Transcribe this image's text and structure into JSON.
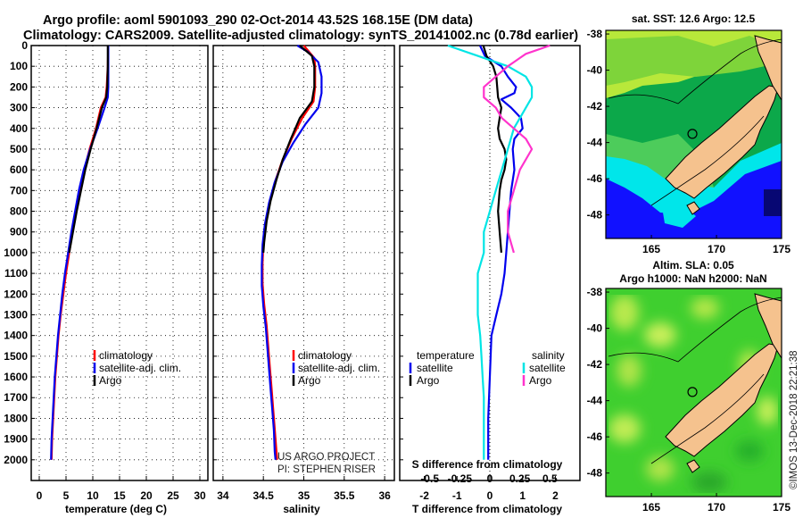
{
  "header": {
    "line1": "Argo profile: aoml 5901093_290 02-Oct-2014 43.52S 168.15E (DM data)",
    "line2": "Climatology: CARS2009. Satellite-adjusted climatology: synTS_20141002.nc (0.78d earlier)"
  },
  "colors": {
    "climatology": "#ff0000",
    "satellite": "#0000ee",
    "argo": "#000000",
    "salinity_satellite": "#00e5e5",
    "salinity_argo": "#ff33cc",
    "land": "#f5c28e"
  },
  "credits": {
    "project": "US ARGO PROJECT",
    "pi": "PI: STEPHEN RISER"
  },
  "stamp": "©IMOS 13-Dec-2018 22:21:38",
  "chart_data": [
    {
      "type": "line",
      "name": "temperature-profile",
      "xlabel": "temperature (deg C)",
      "ylabel": "",
      "xlim": [
        -1.5,
        31.5
      ],
      "xticks": [
        0,
        5,
        10,
        15,
        20,
        25,
        30
      ],
      "xticklabels": [
        "0",
        "5",
        "10",
        "15",
        "20",
        "25",
        "30"
      ],
      "ylim": [
        0,
        2100
      ],
      "yticks": [
        0,
        100,
        200,
        300,
        400,
        500,
        600,
        700,
        800,
        900,
        1000,
        1100,
        1200,
        1300,
        1400,
        1500,
        1600,
        1700,
        1800,
        1900,
        2000
      ],
      "grid": true,
      "legend": [
        "climatology",
        "satellite-adj. clim.",
        "Argo"
      ],
      "series": [
        {
          "name": "climatology",
          "color": "#ff0000",
          "points": [
            [
              12.9,
              0
            ],
            [
              12.8,
              100
            ],
            [
              12.6,
              200
            ],
            [
              12.4,
              250
            ],
            [
              11.5,
              300
            ],
            [
              10.6,
              400
            ],
            [
              9.4,
              500
            ],
            [
              8.4,
              600
            ],
            [
              7.6,
              700
            ],
            [
              6.9,
              800
            ],
            [
              6.2,
              900
            ],
            [
              5.6,
              1000
            ],
            [
              5.0,
              1100
            ],
            [
              4.5,
              1200
            ],
            [
              4.0,
              1300
            ],
            [
              3.6,
              1400
            ],
            [
              3.3,
              1500
            ],
            [
              3.0,
              1600
            ],
            [
              2.8,
              1700
            ],
            [
              2.6,
              1800
            ],
            [
              2.4,
              1900
            ],
            [
              2.3,
              2000
            ]
          ]
        },
        {
          "name": "satellite-adj. clim.",
          "color": "#0000ee",
          "points": [
            [
              12.9,
              0
            ],
            [
              12.9,
              100
            ],
            [
              12.9,
              200
            ],
            [
              12.8,
              250
            ],
            [
              12.2,
              300
            ],
            [
              10.9,
              400
            ],
            [
              9.5,
              500
            ],
            [
              8.3,
              600
            ],
            [
              7.4,
              700
            ],
            [
              6.7,
              800
            ],
            [
              6.0,
              900
            ],
            [
              5.4,
              1000
            ],
            [
              4.8,
              1100
            ],
            [
              4.3,
              1200
            ],
            [
              3.9,
              1300
            ],
            [
              3.5,
              1400
            ],
            [
              3.2,
              1500
            ],
            [
              2.9,
              1600
            ],
            [
              2.7,
              1700
            ],
            [
              2.5,
              1800
            ],
            [
              2.3,
              1900
            ],
            [
              2.2,
              2000
            ]
          ]
        },
        {
          "name": "Argo",
          "color": "#000000",
          "points": [
            [
              12.8,
              0
            ],
            [
              12.8,
              100
            ],
            [
              12.7,
              200
            ],
            [
              12.5,
              250
            ],
            [
              11.7,
              300
            ],
            [
              10.7,
              400
            ],
            [
              9.6,
              500
            ],
            [
              8.6,
              600
            ],
            [
              7.8,
              700
            ],
            [
              7.0,
              800
            ],
            [
              6.3,
              900
            ],
            [
              5.6,
              1000
            ]
          ]
        }
      ]
    },
    {
      "type": "line",
      "name": "salinity-profile",
      "xlabel": "salinity",
      "xlim": [
        33.88,
        36.12
      ],
      "xticks": [
        34,
        34.5,
        35,
        35.5,
        36
      ],
      "xticklabels": [
        "34",
        "34.5",
        "35",
        "35.5",
        "36"
      ],
      "ylim": [
        0,
        2100
      ],
      "grid": true,
      "legend": [
        "climatology",
        "satellite-adj. clim.",
        "Argo"
      ],
      "series": [
        {
          "name": "climatology",
          "color": "#ff0000",
          "points": [
            [
              35.0,
              0
            ],
            [
              35.13,
              60
            ],
            [
              35.14,
              100
            ],
            [
              35.14,
              200
            ],
            [
              35.12,
              270
            ],
            [
              34.98,
              350
            ],
            [
              34.85,
              450
            ],
            [
              34.74,
              550
            ],
            [
              34.65,
              650
            ],
            [
              34.58,
              750
            ],
            [
              34.53,
              850
            ],
            [
              34.5,
              950
            ],
            [
              34.49,
              1050
            ],
            [
              34.49,
              1150
            ],
            [
              34.51,
              1250
            ],
            [
              34.54,
              1350
            ],
            [
              34.56,
              1450
            ],
            [
              34.58,
              1550
            ],
            [
              34.6,
              1650
            ],
            [
              34.62,
              1750
            ],
            [
              34.64,
              1850
            ],
            [
              34.66,
              1950
            ],
            [
              34.67,
              2000
            ]
          ]
        },
        {
          "name": "satellite-adj. clim.",
          "color": "#0000ee",
          "points": [
            [
              34.92,
              0
            ],
            [
              35.05,
              30
            ],
            [
              35.18,
              80
            ],
            [
              35.22,
              150
            ],
            [
              35.22,
              230
            ],
            [
              35.18,
              300
            ],
            [
              35.02,
              380
            ],
            [
              34.87,
              470
            ],
            [
              34.74,
              560
            ],
            [
              34.64,
              660
            ],
            [
              34.57,
              760
            ],
            [
              34.52,
              860
            ],
            [
              34.49,
              960
            ],
            [
              34.48,
              1060
            ],
            [
              34.48,
              1160
            ],
            [
              34.5,
              1260
            ],
            [
              34.53,
              1360
            ],
            [
              34.55,
              1460
            ],
            [
              34.57,
              1560
            ],
            [
              34.59,
              1660
            ],
            [
              34.61,
              1760
            ],
            [
              34.63,
              1860
            ],
            [
              34.64,
              1960
            ],
            [
              34.65,
              2000
            ]
          ]
        },
        {
          "name": "Argo",
          "color": "#000000",
          "points": [
            [
              34.95,
              0
            ],
            [
              35.1,
              50
            ],
            [
              35.13,
              100
            ],
            [
              35.13,
              200
            ],
            [
              35.1,
              270
            ],
            [
              34.95,
              350
            ],
            [
              34.84,
              450
            ],
            [
              34.74,
              550
            ],
            [
              34.66,
              650
            ],
            [
              34.59,
              750
            ],
            [
              34.54,
              850
            ],
            [
              34.51,
              950
            ],
            [
              34.5,
              1000
            ]
          ]
        }
      ]
    },
    {
      "type": "line",
      "name": "difference-profile",
      "xlabel": "T difference from climatology",
      "xlabel2": "S difference from climatology",
      "xlim": [
        -2.75,
        2.75
      ],
      "xticks": [
        -2,
        -1,
        0,
        1,
        2
      ],
      "xticklabels": [
        "-2",
        "-1",
        "0",
        "1",
        "2"
      ],
      "xticks2": [
        -0.5,
        -0.25,
        0,
        0.25,
        0.5
      ],
      "xticklabels2": [
        "-0.5",
        "-0.25",
        "0",
        "0.25",
        "0.5"
      ],
      "ylim": [
        0,
        2100
      ],
      "legend_temperature_title": "temperature",
      "legend_salinity_title": "salinity",
      "legend": [
        "satellite",
        "Argo",
        "satellite",
        "Argo"
      ],
      "series": [
        {
          "name": "temperature satellite",
          "color": "#0000ee",
          "points": [
            [
              -0.3,
              0
            ],
            [
              -0.15,
              50
            ],
            [
              0.35,
              100
            ],
            [
              0.55,
              150
            ],
            [
              0.8,
              200
            ],
            [
              0.75,
              230
            ],
            [
              0.35,
              260
            ],
            [
              0.65,
              300
            ],
            [
              0.95,
              350
            ],
            [
              1.0,
              400
            ],
            [
              0.75,
              450
            ],
            [
              0.7,
              500
            ],
            [
              0.75,
              600
            ],
            [
              0.65,
              700
            ],
            [
              0.6,
              800
            ],
            [
              0.55,
              900
            ],
            [
              0.5,
              1000
            ],
            [
              0.45,
              1100
            ],
            [
              0.35,
              1200
            ],
            [
              0.2,
              1300
            ],
            [
              0.05,
              1400
            ],
            [
              0.0,
              1600
            ],
            [
              -0.05,
              1800
            ],
            [
              -0.05,
              2000
            ]
          ]
        },
        {
          "name": "temperature Argo",
          "color": "#000000",
          "points": [
            [
              -0.2,
              0
            ],
            [
              -0.1,
              50
            ],
            [
              0.1,
              100
            ],
            [
              0.2,
              150
            ],
            [
              0.25,
              250
            ],
            [
              0.35,
              300
            ],
            [
              0.3,
              350
            ],
            [
              0.25,
              400
            ],
            [
              0.3,
              450
            ],
            [
              0.45,
              500
            ],
            [
              0.5,
              550
            ],
            [
              0.45,
              600
            ],
            [
              0.35,
              650
            ],
            [
              0.3,
              700
            ],
            [
              0.25,
              800
            ],
            [
              0.3,
              900
            ],
            [
              0.35,
              1000
            ]
          ]
        },
        {
          "name": "salinity satellite",
          "color": "#00e5e5",
          "points": [
            [
              -0.35,
              0
            ],
            [
              -0.1,
              50
            ],
            [
              0.15,
              100
            ],
            [
              0.3,
              150
            ],
            [
              0.35,
              200
            ],
            [
              0.35,
              250
            ],
            [
              0.3,
              300
            ],
            [
              0.25,
              350
            ],
            [
              0.2,
              400
            ],
            [
              0.15,
              500
            ],
            [
              0.1,
              600
            ],
            [
              0.05,
              700
            ],
            [
              0.0,
              800
            ],
            [
              -0.05,
              900
            ],
            [
              -0.05,
              1000
            ],
            [
              -0.1,
              1100
            ],
            [
              -0.1,
              1200
            ],
            [
              -0.1,
              1300
            ],
            [
              -0.08,
              1400
            ],
            [
              -0.07,
              1500
            ],
            [
              -0.06,
              1600
            ],
            [
              -0.05,
              1700
            ],
            [
              -0.05,
              1800
            ],
            [
              -0.05,
              1900
            ],
            [
              -0.05,
              2000
            ]
          ]
        },
        {
          "name": "salinity Argo",
          "color": "#ff33cc",
          "points": [
            [
              0.5,
              0
            ],
            [
              0.3,
              40
            ],
            [
              0.25,
              60
            ],
            [
              0.2,
              80
            ],
            [
              0.15,
              100
            ],
            [
              0.05,
              150
            ],
            [
              -0.05,
              200
            ],
            [
              -0.05,
              250
            ],
            [
              0.05,
              300
            ],
            [
              0.1,
              350
            ],
            [
              0.2,
              400
            ],
            [
              0.3,
              450
            ],
            [
              0.35,
              500
            ],
            [
              0.25,
              600
            ],
            [
              0.2,
              700
            ],
            [
              0.15,
              800
            ],
            [
              0.15,
              900
            ],
            [
              0.2,
              1000
            ]
          ]
        }
      ]
    },
    {
      "type": "heatmap",
      "name": "sst-map",
      "title": "sat. SST: 12.6 Argo: 12.5",
      "xlim": [
        161.5,
        175
      ],
      "ylim": [
        -49.3,
        -37.8
      ],
      "xticks": [
        165,
        170,
        175
      ],
      "yticks": [
        -48,
        -46,
        -44,
        -42,
        -40,
        -38
      ],
      "yticklabels": [
        "-48",
        "-46",
        "-44",
        "-42",
        "-40",
        "-38"
      ],
      "argo_location": [
        168.15,
        -43.52
      ]
    },
    {
      "type": "heatmap",
      "name": "sla-map",
      "title": "Altim. SLA: 0.05",
      "subtitle": "Argo h1000: NaN h2000: NaN",
      "xlim": [
        161.5,
        175
      ],
      "ylim": [
        -49.3,
        -37.8
      ],
      "xticks": [
        165,
        170,
        175
      ],
      "yticks": [
        -48,
        -46,
        -44,
        -42,
        -40,
        -38
      ],
      "yticklabels": [
        "-48",
        "-46",
        "-44",
        "-42",
        "-40",
        "-38"
      ],
      "argo_location": [
        168.15,
        -43.52
      ]
    }
  ]
}
